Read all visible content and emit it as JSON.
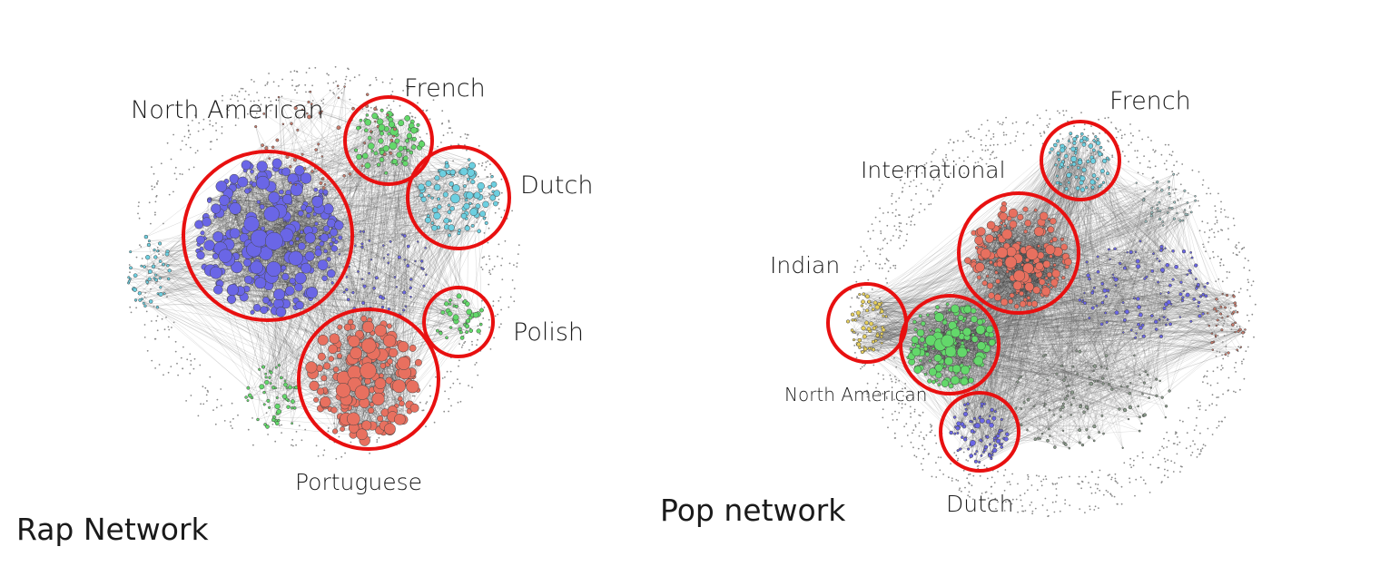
{
  "colors": {
    "ring": "#e81010",
    "edge": "#555555",
    "blue": "#6a66e6",
    "red": "#e8705f",
    "green": "#63d86a",
    "cyan": "#6ccfe0",
    "yellow": "#e6cf5b",
    "gray_dot": "#8a8a8a"
  },
  "rap": {
    "title": "Rap Network",
    "communities": [
      {
        "label": "North American",
        "color": "blue"
      },
      {
        "label": "French",
        "color": "green"
      },
      {
        "label": "Dutch",
        "color": "cyan"
      },
      {
        "label": "Polish",
        "color": "green"
      },
      {
        "label": "Portuguese",
        "color": "red"
      }
    ]
  },
  "pop": {
    "title": "Pop network",
    "communities": [
      {
        "label": "French",
        "color": "cyan"
      },
      {
        "label": "International",
        "color": "red"
      },
      {
        "label": "Indian",
        "color": "yellow"
      },
      {
        "label": "North American",
        "color": "green"
      },
      {
        "label": "Dutch",
        "color": "blue"
      }
    ]
  }
}
